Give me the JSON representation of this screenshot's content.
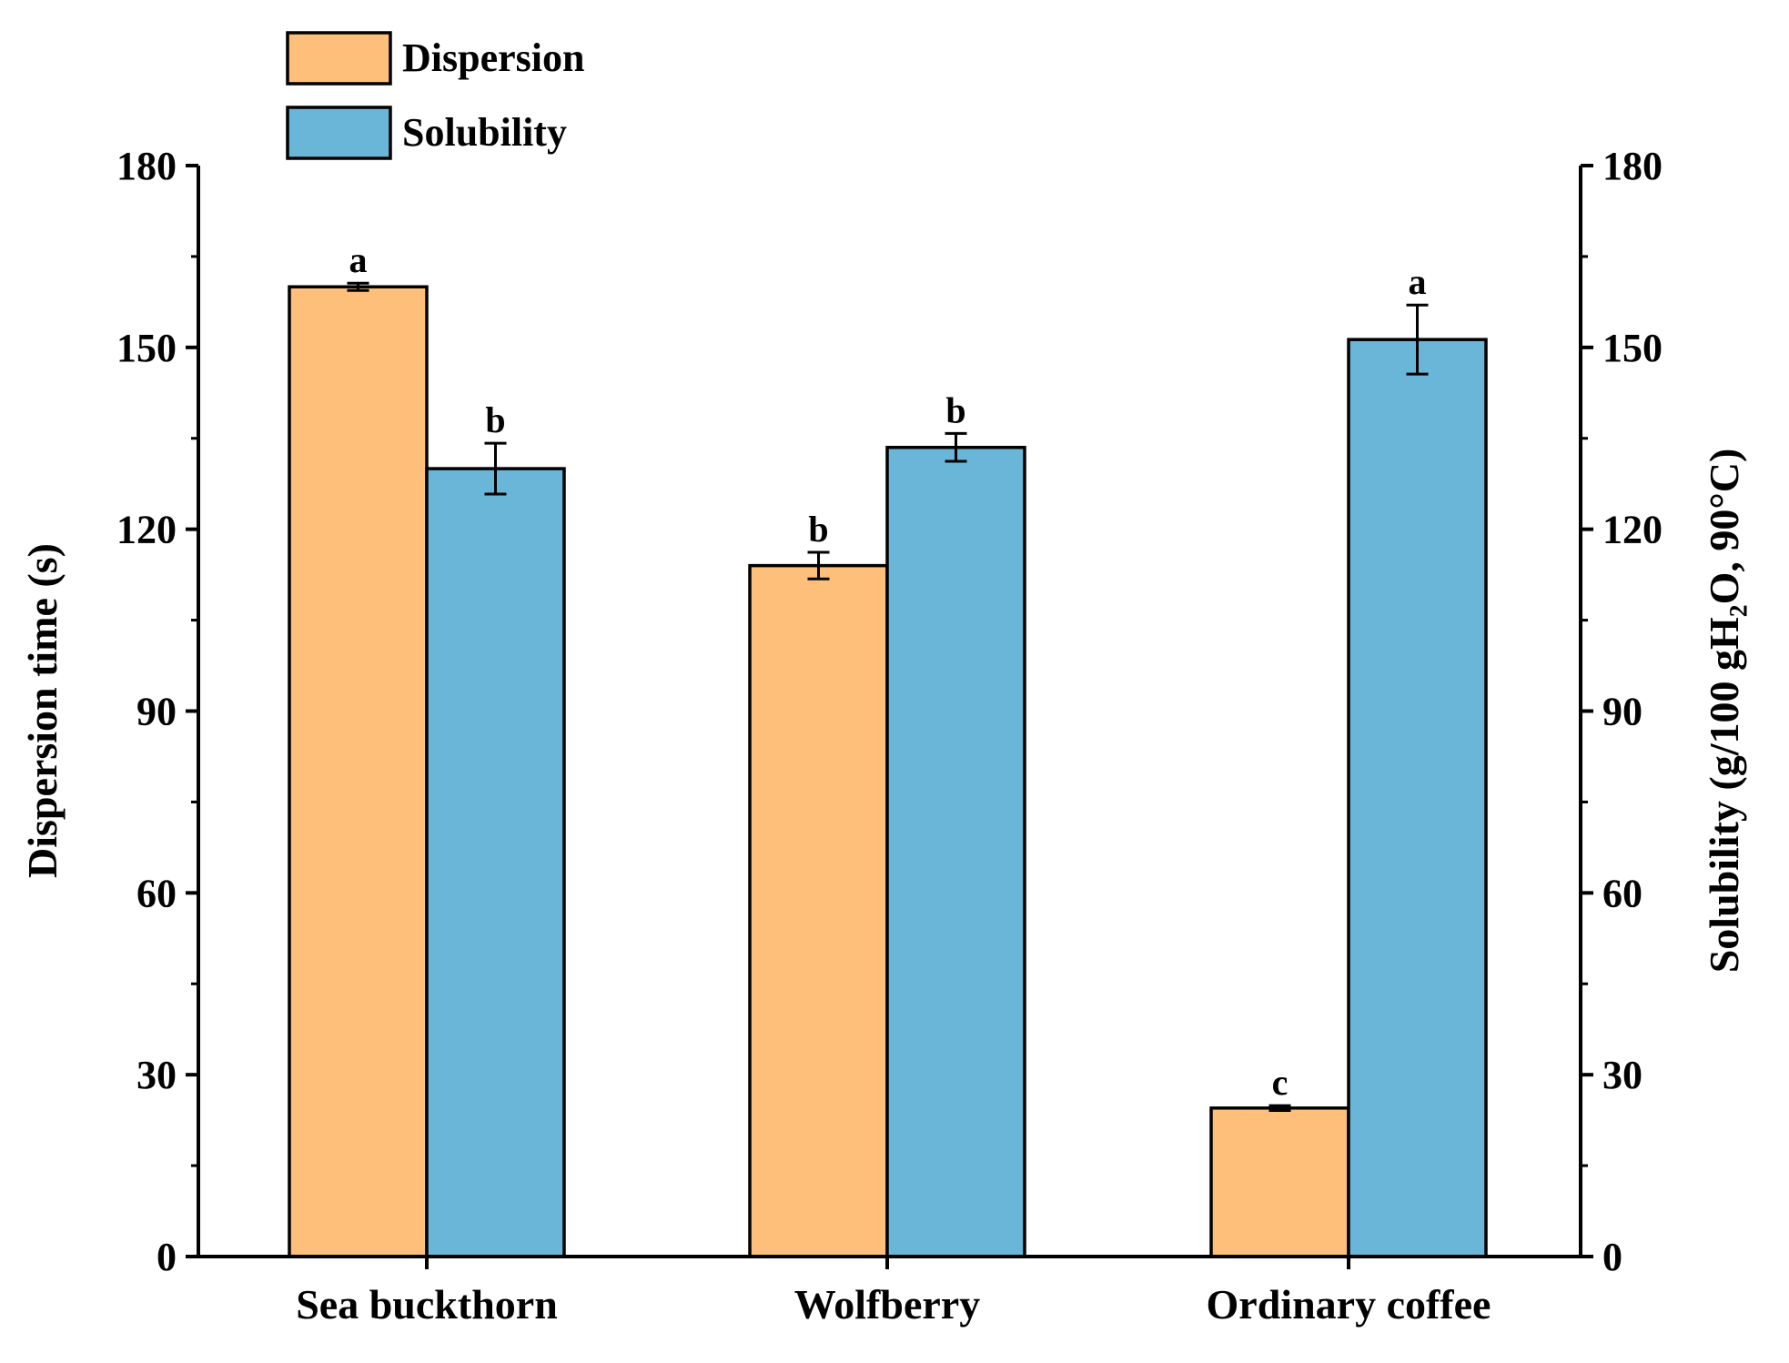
{
  "chart_data": {
    "type": "bar",
    "categories": [
      "Sea buckthorn",
      "Wolfberry",
      "Ordinary coffee"
    ],
    "ylabel_left": "Dispersion time (s)",
    "ylabel_right": "Solubility (g/100 gH₂O, 90°C)",
    "ylim_left": [
      0,
      180
    ],
    "ylim_right": [
      0,
      180
    ],
    "yticks": [
      0,
      30,
      60,
      90,
      120,
      150,
      180
    ],
    "grid": false,
    "legend_position": "top-left",
    "series": [
      {
        "name": "Dispersion",
        "axis": "left",
        "color": "#FDBF79",
        "values": [
          160,
          114,
          24.5
        ],
        "errors": [
          0.6,
          2.2,
          0.4
        ],
        "letters": [
          "a",
          "b",
          "c"
        ]
      },
      {
        "name": "Solubility",
        "axis": "right",
        "color": "#6AB6D9",
        "values": [
          130,
          133.5,
          151.3
        ],
        "errors": [
          4.2,
          2.3,
          5.7
        ],
        "letters": [
          "b",
          "b",
          "a"
        ]
      }
    ]
  }
}
